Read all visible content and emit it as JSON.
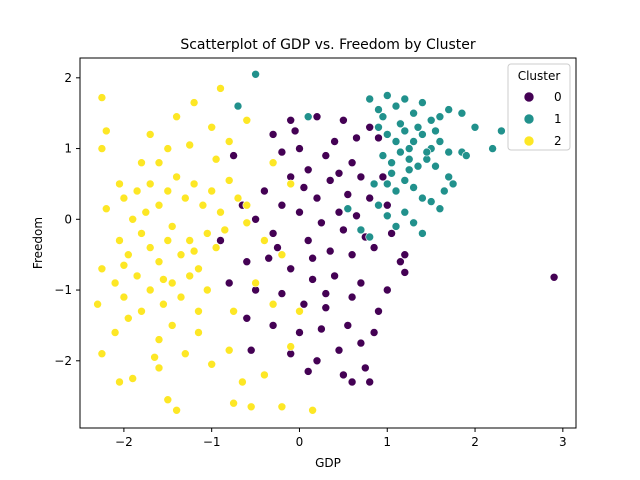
{
  "chart_data": {
    "type": "scatter",
    "title": "Scatterplot of GDP vs. Freedom by Cluster",
    "xlabel": "GDP",
    "ylabel": "Freedom",
    "xlim": [
      -2.5,
      3.15
    ],
    "ylim": [
      -2.95,
      2.28
    ],
    "xticks": [
      -2,
      -1,
      0,
      1,
      2,
      3
    ],
    "yticks": [
      -2,
      -1,
      0,
      1,
      2
    ],
    "grid": false,
    "legend": {
      "title": "Cluster",
      "placement": "top-right"
    },
    "series": [
      {
        "name": "0",
        "color": "#440154",
        "points": [
          [
            -0.3,
            1.2
          ],
          [
            -0.1,
            1.4
          ],
          [
            0.2,
            1.45
          ],
          [
            0.5,
            1.4
          ],
          [
            0.8,
            1.3
          ],
          [
            0.9,
            1.15
          ],
          [
            -0.2,
            0.95
          ],
          [
            0.0,
            1.0
          ],
          [
            0.3,
            0.9
          ],
          [
            0.6,
            0.8
          ],
          [
            0.4,
            1.1
          ],
          [
            0.7,
            0.6
          ],
          [
            -0.1,
            0.6
          ],
          [
            0.1,
            0.7
          ],
          [
            0.35,
            0.55
          ],
          [
            0.55,
            0.35
          ],
          [
            0.8,
            0.3
          ],
          [
            1.0,
            0.2
          ],
          [
            0.2,
            0.3
          ],
          [
            0.45,
            0.1
          ],
          [
            0.65,
            0.05
          ],
          [
            -0.4,
            0.4
          ],
          [
            -0.2,
            0.2
          ],
          [
            0.0,
            0.1
          ],
          [
            0.25,
            -0.05
          ],
          [
            0.5,
            -0.15
          ],
          [
            0.75,
            -0.25
          ],
          [
            1.05,
            -0.2
          ],
          [
            -0.5,
            0.0
          ],
          [
            -0.3,
            -0.2
          ],
          [
            0.1,
            -0.3
          ],
          [
            0.35,
            -0.45
          ],
          [
            0.6,
            -0.5
          ],
          [
            0.85,
            -0.4
          ],
          [
            1.2,
            -0.5
          ],
          [
            -0.6,
            -0.6
          ],
          [
            -0.35,
            -0.55
          ],
          [
            -0.1,
            -0.7
          ],
          [
            0.15,
            -0.85
          ],
          [
            0.4,
            -0.8
          ],
          [
            0.7,
            -0.9
          ],
          [
            1.0,
            -1.0
          ],
          [
            -0.8,
            -0.9
          ],
          [
            -0.5,
            -1.0
          ],
          [
            -0.2,
            -1.05
          ],
          [
            0.05,
            -1.2
          ],
          [
            0.3,
            -1.25
          ],
          [
            0.6,
            -1.1
          ],
          [
            0.9,
            -1.3
          ],
          [
            -0.6,
            -1.4
          ],
          [
            -0.3,
            -1.5
          ],
          [
            0.0,
            -1.6
          ],
          [
            0.25,
            -1.55
          ],
          [
            0.55,
            -1.5
          ],
          [
            0.85,
            -1.6
          ],
          [
            -0.1,
            -1.9
          ],
          [
            0.2,
            -2.0
          ],
          [
            0.45,
            -1.85
          ],
          [
            0.75,
            -2.1
          ],
          [
            -0.4,
            -2.2
          ],
          [
            0.6,
            -2.3
          ],
          [
            0.8,
            -2.3
          ],
          [
            2.9,
            -0.82
          ],
          [
            1.15,
            -0.6
          ],
          [
            -0.75,
            0.9
          ],
          [
            -0.65,
            0.2
          ],
          [
            -0.9,
            -0.3
          ],
          [
            0.95,
            0.6
          ],
          [
            0.15,
            -0.55
          ],
          [
            0.45,
            0.65
          ],
          [
            0.05,
            0.45
          ],
          [
            -0.25,
            -0.4
          ],
          [
            0.3,
            -1.05
          ],
          [
            0.7,
            -1.75
          ],
          [
            -0.55,
            -1.85
          ],
          [
            0.1,
            -2.15
          ],
          [
            0.5,
            -2.2
          ],
          [
            1.2,
            -0.75
          ],
          [
            -0.05,
            1.25
          ],
          [
            0.65,
            1.15
          ]
        ]
      },
      {
        "name": "1",
        "color": "#21918c",
        "points": [
          [
            -0.5,
            2.05
          ],
          [
            -0.7,
            1.6
          ],
          [
            0.1,
            1.45
          ],
          [
            0.8,
            1.7
          ],
          [
            0.9,
            1.55
          ],
          [
            1.0,
            1.75
          ],
          [
            1.1,
            1.6
          ],
          [
            1.2,
            1.7
          ],
          [
            1.3,
            1.5
          ],
          [
            1.4,
            1.65
          ],
          [
            1.5,
            1.4
          ],
          [
            1.6,
            1.45
          ],
          [
            1.7,
            1.55
          ],
          [
            1.85,
            1.5
          ],
          [
            2.0,
            1.3
          ],
          [
            2.3,
            1.25
          ],
          [
            0.9,
            1.3
          ],
          [
            1.0,
            1.2
          ],
          [
            1.1,
            1.1
          ],
          [
            1.2,
            1.25
          ],
          [
            1.3,
            1.1
          ],
          [
            1.4,
            1.2
          ],
          [
            1.5,
            1.0
          ],
          [
            1.6,
            1.1
          ],
          [
            1.7,
            0.95
          ],
          [
            1.85,
            0.95
          ],
          [
            0.95,
            0.9
          ],
          [
            1.05,
            0.8
          ],
          [
            1.15,
            0.95
          ],
          [
            1.25,
            0.85
          ],
          [
            1.35,
            0.75
          ],
          [
            1.45,
            0.85
          ],
          [
            1.55,
            0.75
          ],
          [
            1.7,
            0.6
          ],
          [
            1.75,
            0.5
          ],
          [
            1.0,
            0.5
          ],
          [
            1.1,
            0.4
          ],
          [
            1.2,
            0.55
          ],
          [
            1.3,
            0.45
          ],
          [
            1.4,
            0.3
          ],
          [
            1.5,
            0.25
          ],
          [
            1.6,
            0.15
          ],
          [
            0.9,
            0.2
          ],
          [
            1.0,
            0.05
          ],
          [
            1.2,
            0.1
          ],
          [
            1.3,
            -0.05
          ],
          [
            0.7,
            -0.15
          ],
          [
            0.8,
            -0.25
          ],
          [
            1.4,
            -0.2
          ],
          [
            0.55,
            0.15
          ],
          [
            2.2,
            1.0
          ],
          [
            1.9,
            0.9
          ],
          [
            0.95,
            1.45
          ],
          [
            1.15,
            1.35
          ],
          [
            1.35,
            1.3
          ],
          [
            1.55,
            1.25
          ],
          [
            1.25,
            1.0
          ],
          [
            1.45,
            0.95
          ],
          [
            1.05,
            0.65
          ],
          [
            1.25,
            0.7
          ],
          [
            1.65,
            0.4
          ],
          [
            0.85,
            0.5
          ],
          [
            1.1,
            -0.1
          ]
        ]
      },
      {
        "name": "2",
        "color": "#fde725",
        "points": [
          [
            -2.25,
            1.72
          ],
          [
            -2.25,
            1.0
          ],
          [
            -2.2,
            1.25
          ],
          [
            -2.05,
            0.5
          ],
          [
            -1.8,
            0.8
          ],
          [
            -1.7,
            1.2
          ],
          [
            -1.5,
            1.0
          ],
          [
            -1.4,
            1.45
          ],
          [
            -1.2,
            1.65
          ],
          [
            -0.9,
            1.85
          ],
          [
            -1.0,
            1.3
          ],
          [
            -0.8,
            1.1
          ],
          [
            -0.6,
            1.4
          ],
          [
            -2.0,
            0.3
          ],
          [
            -1.9,
            0.0
          ],
          [
            -1.85,
            0.4
          ],
          [
            -1.7,
            0.5
          ],
          [
            -1.6,
            0.2
          ],
          [
            -1.5,
            0.4
          ],
          [
            -1.4,
            0.6
          ],
          [
            -1.3,
            0.3
          ],
          [
            -1.2,
            0.5
          ],
          [
            -1.1,
            0.2
          ],
          [
            -1.0,
            0.4
          ],
          [
            -0.9,
            0.1
          ],
          [
            -0.8,
            0.55
          ],
          [
            -0.7,
            0.3
          ],
          [
            -0.6,
            -0.05
          ],
          [
            -2.2,
            0.15
          ],
          [
            -2.05,
            -0.3
          ],
          [
            -1.95,
            -0.5
          ],
          [
            -1.8,
            -0.2
          ],
          [
            -1.7,
            -0.4
          ],
          [
            -1.6,
            -0.6
          ],
          [
            -1.5,
            -0.3
          ],
          [
            -1.45,
            -0.1
          ],
          [
            -1.35,
            -0.5
          ],
          [
            -1.25,
            -0.3
          ],
          [
            -1.15,
            -0.7
          ],
          [
            -1.05,
            -0.2
          ],
          [
            -0.95,
            -0.4
          ],
          [
            -0.85,
            -0.15
          ],
          [
            -2.25,
            -0.7
          ],
          [
            -2.1,
            -0.9
          ],
          [
            -2.0,
            -1.1
          ],
          [
            -1.85,
            -0.8
          ],
          [
            -1.7,
            -1.0
          ],
          [
            -1.55,
            -1.2
          ],
          [
            -1.45,
            -0.9
          ],
          [
            -1.35,
            -1.1
          ],
          [
            -1.25,
            -0.8
          ],
          [
            -1.15,
            -1.3
          ],
          [
            -1.05,
            -1.0
          ],
          [
            -2.3,
            -1.2
          ],
          [
            -2.1,
            -1.6
          ],
          [
            -1.95,
            -1.4
          ],
          [
            -1.8,
            -1.3
          ],
          [
            -1.6,
            -1.7
          ],
          [
            -1.45,
            -1.5
          ],
          [
            -1.3,
            -1.9
          ],
          [
            -1.15,
            -1.6
          ],
          [
            -2.25,
            -1.9
          ],
          [
            -2.05,
            -2.3
          ],
          [
            -1.6,
            -2.1
          ],
          [
            -1.5,
            -2.55
          ],
          [
            -1.4,
            -2.7
          ],
          [
            -1.0,
            -2.05
          ],
          [
            -0.8,
            -1.85
          ],
          [
            -0.75,
            -2.6
          ],
          [
            -0.55,
            -2.65
          ],
          [
            -0.2,
            -2.65
          ],
          [
            0.15,
            -2.7
          ],
          [
            -0.4,
            -2.2
          ],
          [
            -0.1,
            -1.8
          ],
          [
            0.0,
            -1.3
          ],
          [
            -0.3,
            -1.2
          ],
          [
            -0.5,
            -0.9
          ],
          [
            -0.2,
            -0.5
          ],
          [
            -0.4,
            -0.3
          ],
          [
            -0.6,
            0.2
          ],
          [
            -0.1,
            0.5
          ],
          [
            -0.3,
            0.8
          ],
          [
            -1.6,
            0.8
          ],
          [
            -1.25,
            1.05
          ],
          [
            -0.95,
            0.85
          ],
          [
            -2.0,
            -0.65
          ],
          [
            -1.75,
            0.1
          ],
          [
            -1.55,
            -0.85
          ],
          [
            -1.2,
            -0.45
          ],
          [
            -0.75,
            -1.3
          ],
          [
            -0.65,
            -2.3
          ],
          [
            -1.9,
            -2.25
          ],
          [
            -1.65,
            -1.95
          ]
        ]
      }
    ]
  }
}
